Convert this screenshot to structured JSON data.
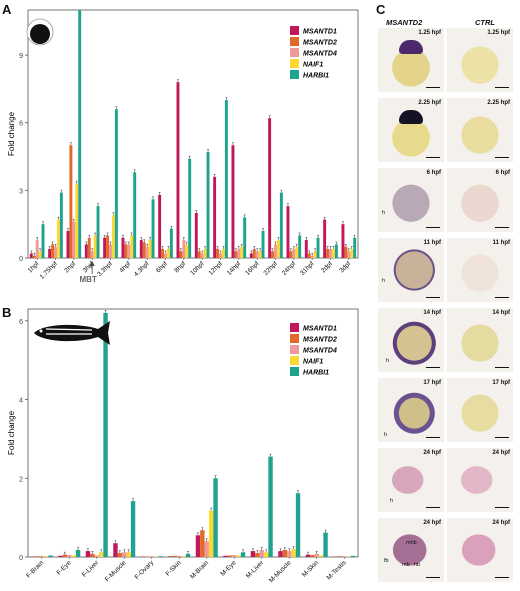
{
  "panels": {
    "a": "A",
    "b": "B",
    "c": "C"
  },
  "colors": {
    "MSANTD1": "#c2185b",
    "MSANTD2": "#e06a2a",
    "MSANTD4": "#ef9a9a",
    "NAIF1": "#fdd835",
    "HARBI1": "#1fa38f"
  },
  "chart_data": [
    {
      "type": "bar",
      "ylabel": "Fold change",
      "ylim": [
        0,
        11
      ],
      "yticks": [
        "0",
        "3",
        "6",
        "9"
      ],
      "annotation": "MBT",
      "categories": [
        "1hpf",
        "1.75hpf",
        "2hpf",
        "3hpf",
        "3.3hpf",
        "4hpf",
        "4.3hpf",
        "6hpf",
        "8hpf",
        "10hpf",
        "12hpf",
        "14hpf",
        "16hpf",
        "22hpf",
        "24hpf",
        "31hpf",
        "2dpf",
        "3dpf"
      ],
      "series": [
        {
          "name": "MSANTD1",
          "values": [
            0.2,
            0.4,
            1.2,
            0.6,
            0.9,
            0.9,
            0.8,
            2.8,
            7.8,
            2.0,
            3.6,
            5.0,
            0.2,
            6.2,
            2.3,
            0.8,
            1.7,
            1.5
          ]
        },
        {
          "name": "MSANTD2",
          "values": [
            0.1,
            0.6,
            5.0,
            0.9,
            1.0,
            0.6,
            0.7,
            0.4,
            0.3,
            0.3,
            0.4,
            0.3,
            0.4,
            0.3,
            0.3,
            0.2,
            0.4,
            0.5
          ]
        },
        {
          "name": "MSANTD4",
          "values": [
            0.8,
            0.5,
            1.6,
            0.3,
            0.6,
            0.6,
            0.5,
            0.2,
            0.8,
            0.2,
            0.2,
            0.4,
            0.3,
            0.6,
            0.4,
            0.1,
            0.4,
            0.3
          ]
        },
        {
          "name": "NAIF1",
          "values": [
            0.3,
            1.7,
            3.3,
            1.0,
            1.9,
            1.0,
            0.8,
            0.4,
            0.6,
            0.4,
            0.4,
            0.5,
            0.3,
            0.8,
            0.5,
            0.3,
            0.4,
            0.4
          ]
        },
        {
          "name": "HARBI1",
          "values": [
            1.5,
            2.9,
            11.0,
            2.3,
            6.6,
            3.8,
            2.6,
            1.3,
            4.4,
            4.7,
            7.0,
            1.8,
            1.2,
            2.9,
            1.0,
            0.9,
            0.6,
            0.9
          ]
        }
      ]
    },
    {
      "type": "bar",
      "ylabel": "Fold change",
      "ylim": [
        0,
        6.3
      ],
      "yticks": [
        "0",
        "2",
        "4",
        "6"
      ],
      "categories": [
        "F-Brain",
        "F-Eye",
        "F-Liver",
        "F-Muscle",
        "F-Ovary",
        "F-Skin",
        "M-Brain",
        "M-Eye",
        "M-Liver",
        "M-Muscle",
        "M-Skin",
        "M-Testis"
      ],
      "series": [
        {
          "name": "MSANTD1",
          "values": [
            0.01,
            0.03,
            0.15,
            0.35,
            0.01,
            0.02,
            0.55,
            0.03,
            0.15,
            0.15,
            0.06,
            0.01
          ]
        },
        {
          "name": "MSANTD2",
          "values": [
            0.02,
            0.06,
            0.08,
            0.1,
            0.01,
            0.03,
            0.68,
            0.04,
            0.1,
            0.18,
            0.05,
            0.02
          ]
        },
        {
          "name": "MSANTD4",
          "values": [
            0.03,
            0.05,
            0.04,
            0.12,
            0.02,
            0.03,
            0.4,
            0.05,
            0.18,
            0.15,
            0.08,
            0.02
          ]
        },
        {
          "name": "NAIF1",
          "values": [
            0.02,
            0.04,
            0.12,
            0.12,
            0.01,
            0.02,
            1.18,
            0.04,
            0.12,
            0.2,
            0.04,
            0.01
          ]
        },
        {
          "name": "HARBI1",
          "values": [
            0.04,
            0.18,
            6.2,
            1.42,
            0.02,
            0.08,
            2.0,
            0.12,
            2.55,
            1.62,
            0.62,
            0.03
          ]
        }
      ]
    }
  ],
  "photos": {
    "col_left": "MSANTD2",
    "col_right": "CTRL",
    "rows": [
      {
        "stage": "1.25 hpf",
        "labels": []
      },
      {
        "stage": "2.25 hpf",
        "labels": []
      },
      {
        "stage": "6 hpf",
        "labels": [
          "h"
        ]
      },
      {
        "stage": "11 hpf",
        "labels": [
          "h"
        ]
      },
      {
        "stage": "14 hpf",
        "labels": [
          "h"
        ]
      },
      {
        "stage": "17 hpf",
        "labels": [
          "h"
        ]
      },
      {
        "stage": "24 hpf",
        "labels": [
          "h"
        ]
      },
      {
        "stage": "24 hpf",
        "labels": [
          "mhb",
          "fb",
          "mb",
          "hb"
        ]
      }
    ]
  }
}
